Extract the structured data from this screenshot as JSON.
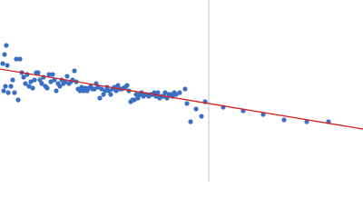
{
  "chart_data": {
    "type": "scatter",
    "xlim": [
      0,
      400
    ],
    "ylim": [
      0,
      200
    ],
    "color": "#3a6fc4",
    "x": [
      3,
      5,
      7,
      8,
      4,
      6,
      9,
      12,
      14,
      16,
      18,
      20,
      22,
      24,
      26,
      28,
      30,
      32,
      34,
      36,
      38,
      40,
      42,
      44,
      46,
      48,
      50,
      52,
      54,
      56,
      58,
      60,
      62,
      64,
      66,
      68,
      70,
      72,
      74,
      76,
      78,
      80,
      82,
      84,
      86,
      88,
      90,
      92,
      94,
      96,
      98,
      100,
      102,
      104,
      106,
      108,
      110,
      112,
      114,
      116,
      118,
      120,
      122,
      124,
      126,
      128,
      130,
      132,
      134,
      136,
      138,
      140,
      142,
      144,
      146,
      148,
      150,
      152,
      154,
      156,
      158,
      160,
      162,
      164,
      166,
      168,
      170,
      172,
      174,
      176,
      178,
      180,
      182,
      184,
      186,
      188,
      190,
      192,
      194,
      198,
      204,
      206,
      210,
      216,
      222,
      226,
      246,
      268,
      290,
      313,
      338,
      362
    ],
    "values": [
      130,
      140,
      150,
      128,
      100,
      105,
      98,
      105,
      112,
      98,
      135,
      90,
      135,
      120,
      115,
      108,
      118,
      105,
      110,
      103,
      112,
      120,
      120,
      112,
      108,
      115,
      105,
      103,
      118,
      110,
      118,
      112,
      100,
      108,
      105,
      112,
      108,
      110,
      116,
      108,
      110,
      112,
      122,
      110,
      102,
      100,
      104,
      100,
      103,
      100,
      103,
      105,
      102,
      102,
      108,
      104,
      92,
      102,
      96,
      100,
      104,
      100,
      96,
      102,
      104,
      100,
      106,
      102,
      102,
      103,
      104,
      106,
      100,
      88,
      90,
      90,
      96,
      92,
      96,
      98,
      94,
      96,
      96,
      94,
      96,
      96,
      98,
      94,
      98,
      92,
      94,
      94,
      98,
      92,
      96,
      96,
      94,
      98,
      96,
      98,
      102,
      86,
      66,
      80,
      72,
      88,
      82,
      78,
      74,
      68,
      66,
      66
    ],
    "fit": {
      "color": "#d62020",
      "x": [
        0,
        400
      ],
      "values": [
        124,
        58
      ]
    },
    "marker_line": {
      "color": "#b8c4dc",
      "x": 230
    }
  }
}
